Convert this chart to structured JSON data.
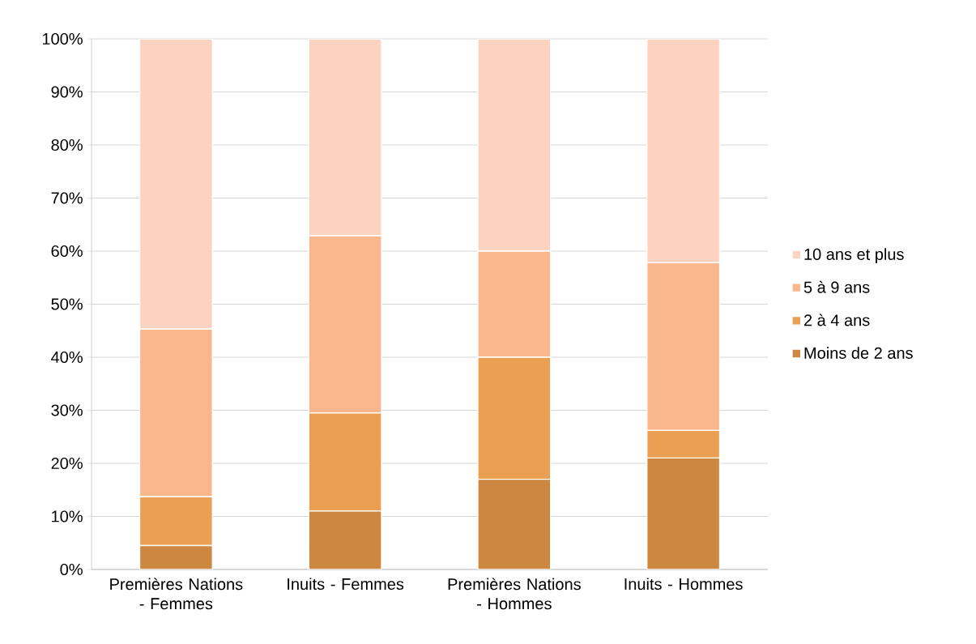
{
  "chart_data": {
    "type": "bar",
    "stacked": true,
    "categories": [
      "Premières Nations - Femmes",
      "Inuits - Femmes",
      "Premières Nations - Hommes",
      "Inuits - Hommes"
    ],
    "series": [
      {
        "name": "Moins de 2 ans",
        "color": "#cd8740",
        "values": [
          4.5,
          11.0,
          17.0,
          21.0
        ]
      },
      {
        "name": "2 à 4 ans",
        "color": "#eb9f53",
        "values": [
          9.2,
          18.5,
          23.0,
          5.2
        ]
      },
      {
        "name": "5 à 9 ans",
        "color": "#f9b78b",
        "values": [
          31.6,
          33.4,
          20.0,
          31.6
        ]
      },
      {
        "name": "10 ans et plus",
        "color": "#fcd3c1",
        "values": [
          54.7,
          37.1,
          40.0,
          42.2
        ]
      }
    ],
    "ylim": [
      0,
      100
    ],
    "yticks": [
      {
        "value": 0,
        "label": "0%"
      },
      {
        "value": 10,
        "label": "10%"
      },
      {
        "value": 20,
        "label": "20%"
      },
      {
        "value": 30,
        "label": "30%"
      },
      {
        "value": 40,
        "label": "40%"
      },
      {
        "value": 50,
        "label": "50%"
      },
      {
        "value": 60,
        "label": "60%"
      },
      {
        "value": 70,
        "label": "70%"
      },
      {
        "value": 80,
        "label": "80%"
      },
      {
        "value": 90,
        "label": "90%"
      },
      {
        "value": 100,
        "label": "100%"
      }
    ],
    "grid": "y",
    "legend": "right"
  }
}
